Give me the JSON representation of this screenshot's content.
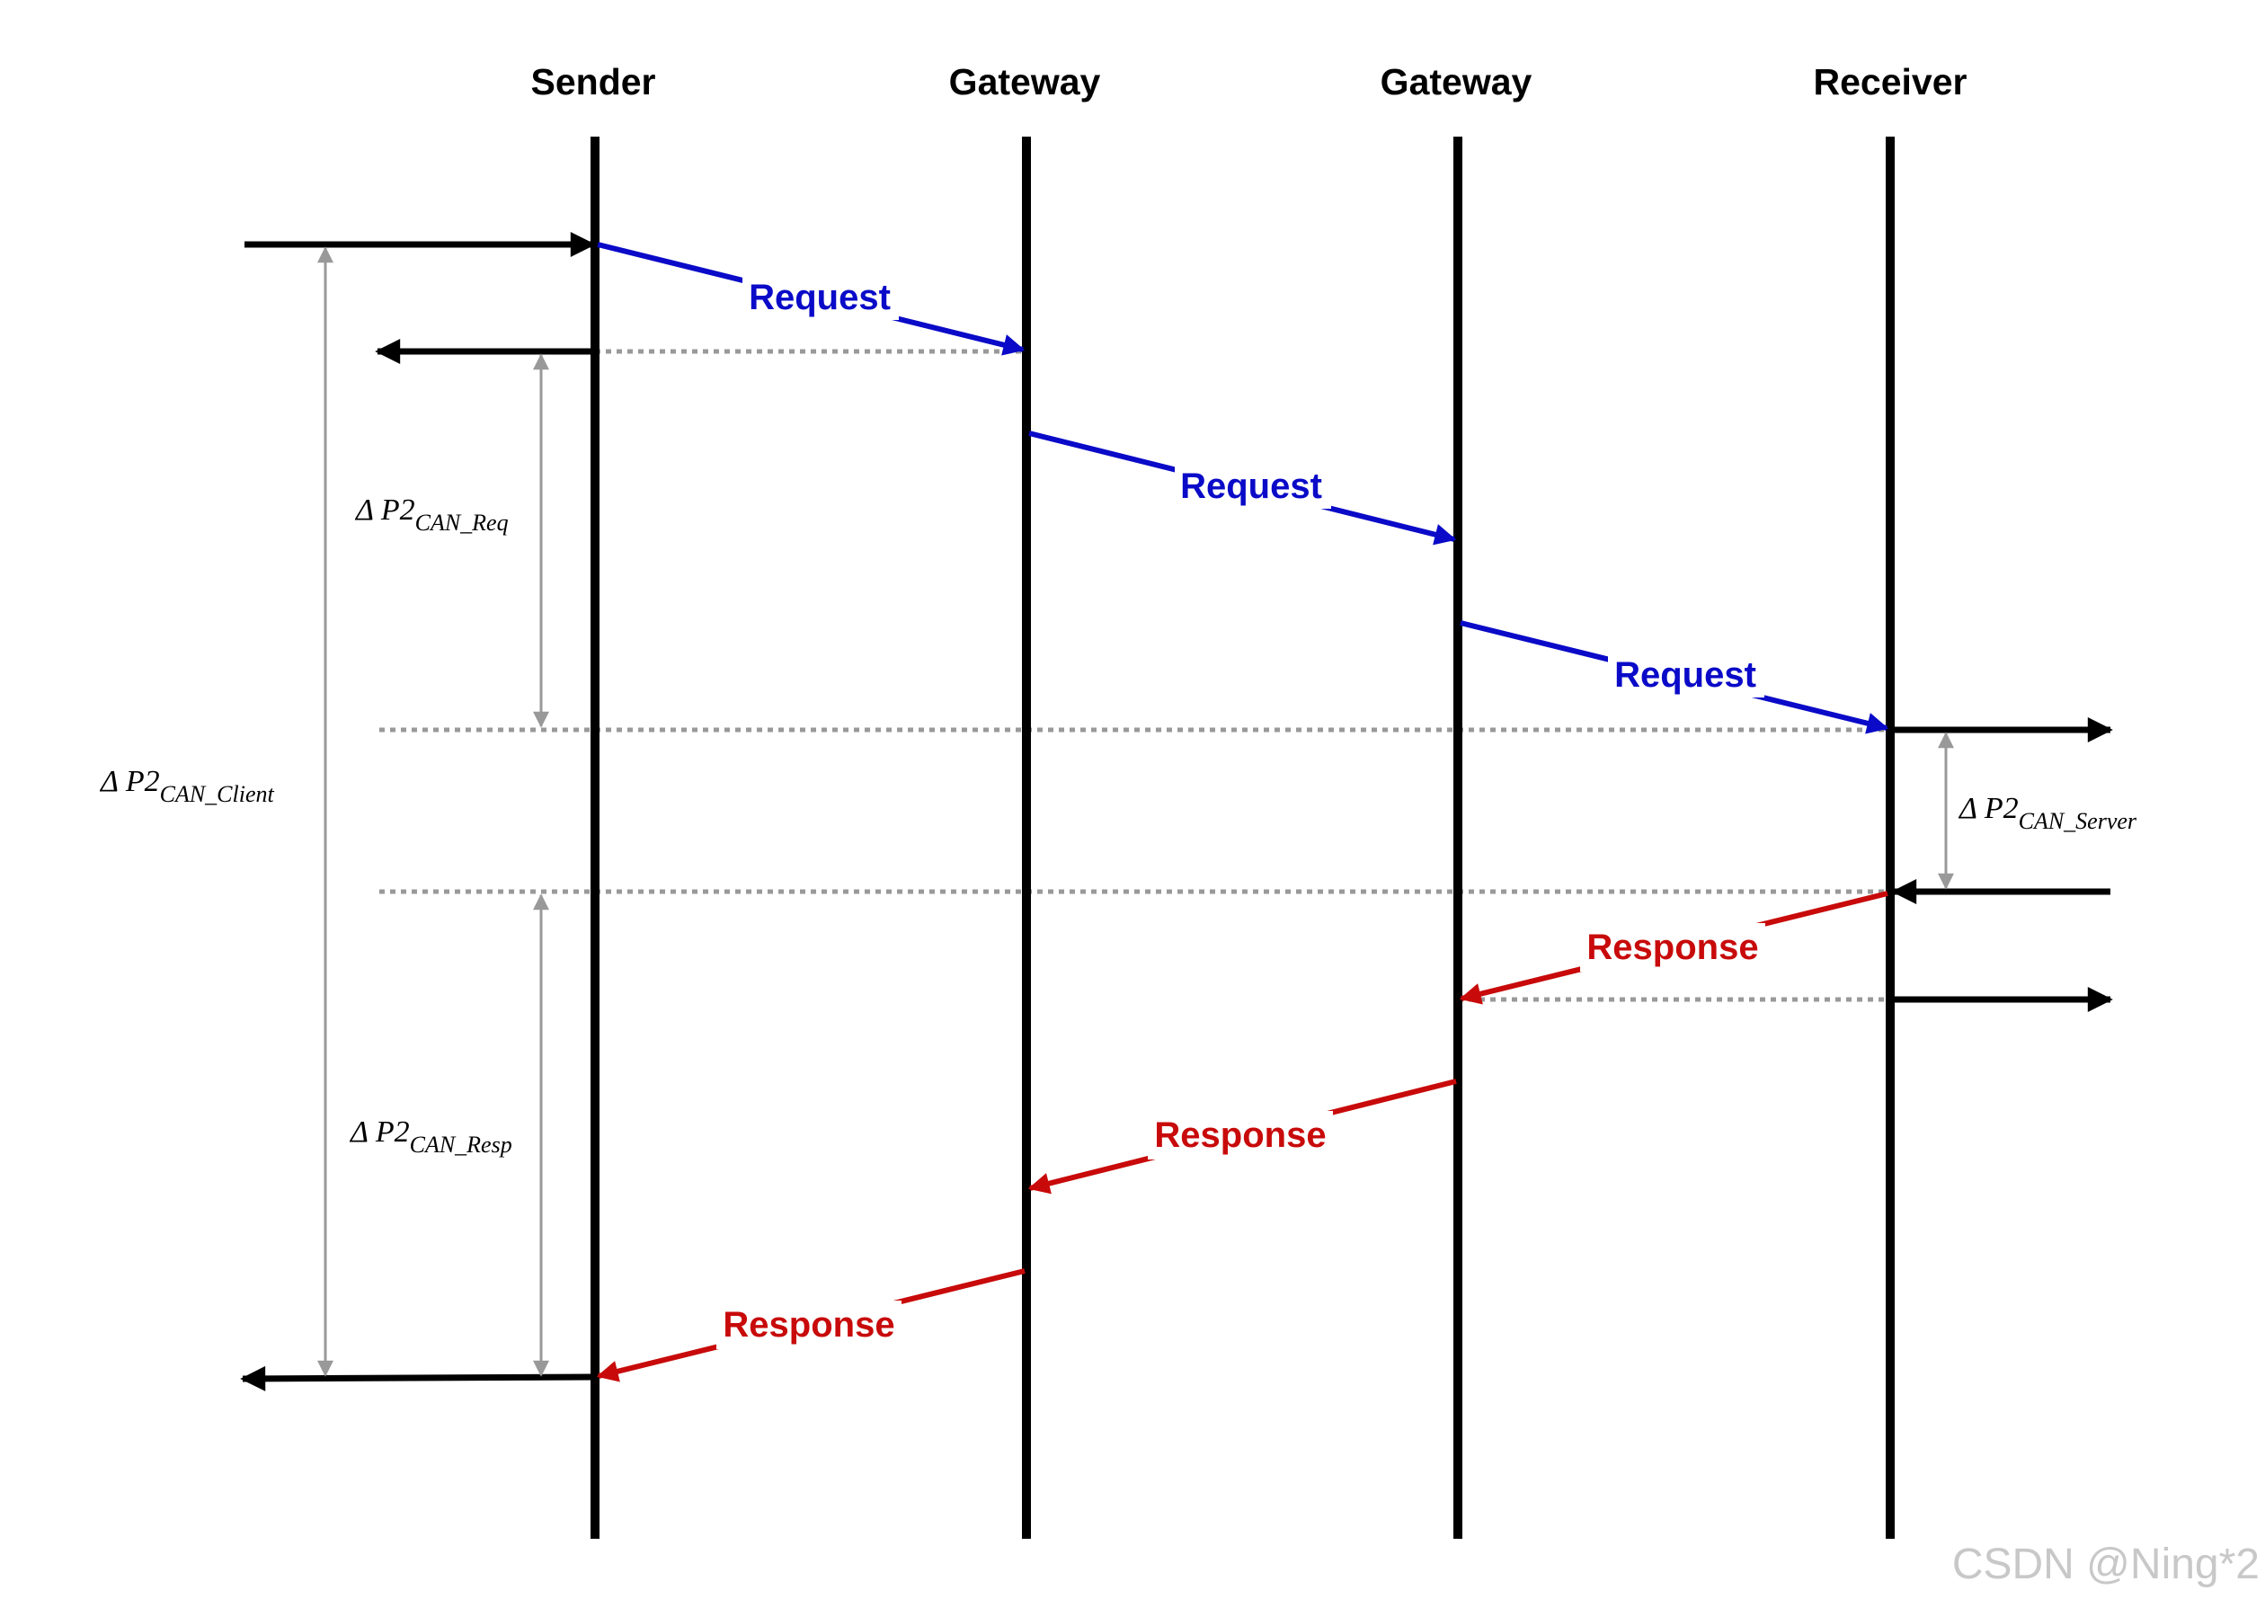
{
  "lanes": [
    {
      "id": "sender",
      "title": "Sender"
    },
    {
      "id": "gateway1",
      "title": "Gateway"
    },
    {
      "id": "gateway2",
      "title": "Gateway"
    },
    {
      "id": "receiver",
      "title": "Receiver"
    }
  ],
  "messages": {
    "request_label": "Request",
    "response_label": "Response"
  },
  "timings": {
    "client": {
      "prefix": "Δ P2",
      "subscript": "CAN_Client"
    },
    "req": {
      "prefix": "Δ P2",
      "subscript": "CAN_Req"
    },
    "resp": {
      "prefix": "Δ P2",
      "subscript": "CAN_Resp"
    },
    "server": {
      "prefix": "Δ P2",
      "subscript": "CAN_Server"
    }
  },
  "colors": {
    "request": "#0a0ac8",
    "response": "#c80a0a",
    "lifeline": "#000000",
    "dotted": "#999999",
    "timing": "#999999"
  },
  "watermark": "CSDN @Ning*2"
}
